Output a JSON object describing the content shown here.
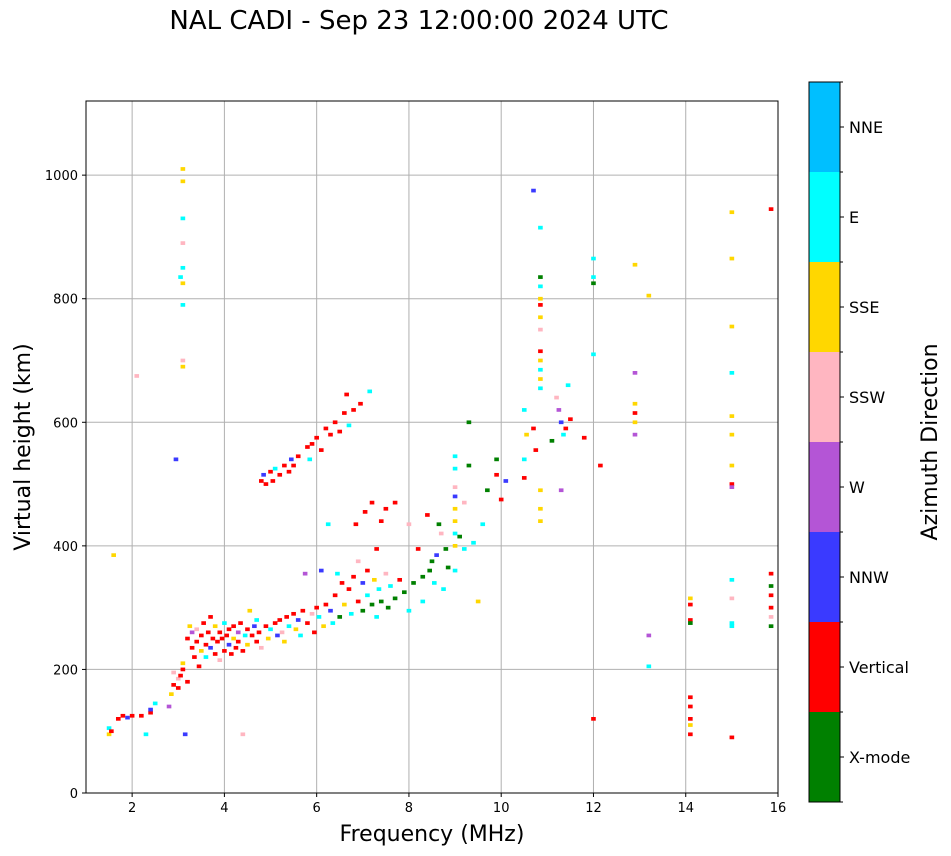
{
  "chart_data": {
    "type": "scatter",
    "title": "NAL CADI - Sep 23 12:00:00 2024 UTC",
    "xlabel": "Frequency (MHz)",
    "ylabel": "Virtual height (km)",
    "xlim": [
      1,
      16
    ],
    "ylim": [
      0,
      1120
    ],
    "xticks": [
      2,
      4,
      6,
      8,
      10,
      12,
      14,
      16
    ],
    "yticks": [
      0,
      200,
      400,
      600,
      800,
      1000
    ],
    "grid": true,
    "colorbar": {
      "label": "Azimuth Direction",
      "categories": [
        "X-mode",
        "Vertical",
        "NNW",
        "W",
        "SSW",
        "SSE",
        "E",
        "NNE"
      ],
      "colors": [
        "#008000",
        "#ff0000",
        "#3a3aff",
        "#b455d6",
        "#ffb6c1",
        "#ffd700",
        "#00ffff",
        "#00bfff"
      ]
    },
    "points": [
      [
        1.5,
        105,
        "E"
      ],
      [
        1.5,
        95,
        "SSE"
      ],
      [
        1.55,
        100,
        "Vertical"
      ],
      [
        1.6,
        385,
        "SSE"
      ],
      [
        1.7,
        120,
        "Vertical"
      ],
      [
        1.8,
        125,
        "Vertical"
      ],
      [
        1.9,
        122,
        "NNW"
      ],
      [
        2.0,
        125,
        "Vertical"
      ],
      [
        2.1,
        675,
        "SSW"
      ],
      [
        2.2,
        125,
        "Vertical"
      ],
      [
        2.3,
        95,
        "E"
      ],
      [
        2.4,
        130,
        "Vertical"
      ],
      [
        2.4,
        135,
        "NNW"
      ],
      [
        2.5,
        145,
        "E"
      ],
      [
        2.8,
        140,
        "W"
      ],
      [
        2.85,
        160,
        "SSE"
      ],
      [
        2.9,
        175,
        "Vertical"
      ],
      [
        2.9,
        195,
        "SSW"
      ],
      [
        2.95,
        540,
        "NNW"
      ],
      [
        3.0,
        170,
        "Vertical"
      ],
      [
        3.0,
        185,
        "SSW"
      ],
      [
        3.05,
        190,
        "Vertical"
      ],
      [
        3.1,
        210,
        "SSE"
      ],
      [
        3.1,
        200,
        "Vertical"
      ],
      [
        3.15,
        95,
        "NNW"
      ],
      [
        3.1,
        1010,
        "SSE"
      ],
      [
        3.1,
        990,
        "SSE"
      ],
      [
        3.1,
        930,
        "E"
      ],
      [
        3.1,
        890,
        "SSW"
      ],
      [
        3.1,
        850,
        "E"
      ],
      [
        3.1,
        825,
        "SSE"
      ],
      [
        3.1,
        790,
        "E"
      ],
      [
        3.1,
        700,
        "SSW"
      ],
      [
        3.1,
        690,
        "SSE"
      ],
      [
        3.05,
        835,
        "E"
      ],
      [
        3.2,
        180,
        "Vertical"
      ],
      [
        3.2,
        250,
        "Vertical"
      ],
      [
        3.25,
        270,
        "SSE"
      ],
      [
        3.3,
        235,
        "Vertical"
      ],
      [
        3.3,
        260,
        "W"
      ],
      [
        3.35,
        220,
        "Vertical"
      ],
      [
        3.4,
        245,
        "Vertical"
      ],
      [
        3.4,
        265,
        "SSW"
      ],
      [
        3.45,
        205,
        "Vertical"
      ],
      [
        3.5,
        255,
        "Vertical"
      ],
      [
        3.5,
        230,
        "SSE"
      ],
      [
        3.55,
        275,
        "Vertical"
      ],
      [
        3.6,
        240,
        "Vertical"
      ],
      [
        3.6,
        220,
        "E"
      ],
      [
        3.65,
        260,
        "Vertical"
      ],
      [
        3.7,
        285,
        "Vertical"
      ],
      [
        3.7,
        235,
        "NNW"
      ],
      [
        3.75,
        250,
        "Vertical"
      ],
      [
        3.8,
        225,
        "Vertical"
      ],
      [
        3.8,
        270,
        "SSE"
      ],
      [
        3.85,
        245,
        "Vertical"
      ],
      [
        3.9,
        260,
        "Vertical"
      ],
      [
        3.9,
        215,
        "SSW"
      ],
      [
        3.95,
        250,
        "Vertical"
      ],
      [
        4.0,
        230,
        "Vertical"
      ],
      [
        4.0,
        275,
        "E"
      ],
      [
        4.05,
        255,
        "Vertical"
      ],
      [
        4.1,
        240,
        "NNW"
      ],
      [
        4.1,
        265,
        "Vertical"
      ],
      [
        4.15,
        225,
        "Vertical"
      ],
      [
        4.2,
        250,
        "SSE"
      ],
      [
        4.2,
        270,
        "Vertical"
      ],
      [
        4.25,
        235,
        "Vertical"
      ],
      [
        4.3,
        260,
        "W"
      ],
      [
        4.3,
        245,
        "Vertical"
      ],
      [
        4.35,
        275,
        "Vertical"
      ],
      [
        4.4,
        230,
        "Vertical"
      ],
      [
        4.4,
        95,
        "SSW"
      ],
      [
        4.45,
        255,
        "E"
      ],
      [
        4.5,
        265,
        "Vertical"
      ],
      [
        4.5,
        240,
        "SSE"
      ],
      [
        4.55,
        295,
        "SSE"
      ],
      [
        4.6,
        255,
        "Vertical"
      ],
      [
        4.65,
        270,
        "NNW"
      ],
      [
        4.7,
        245,
        "Vertical"
      ],
      [
        4.7,
        280,
        "E"
      ],
      [
        4.75,
        260,
        "Vertical"
      ],
      [
        4.8,
        235,
        "SSW"
      ],
      [
        4.8,
        505,
        "Vertical"
      ],
      [
        4.85,
        515,
        "NNW"
      ],
      [
        4.9,
        500,
        "Vertical"
      ],
      [
        4.9,
        270,
        "Vertical"
      ],
      [
        4.95,
        250,
        "SSE"
      ],
      [
        5.0,
        520,
        "Vertical"
      ],
      [
        5.0,
        265,
        "E"
      ],
      [
        5.05,
        505,
        "Vertical"
      ],
      [
        5.1,
        275,
        "Vertical"
      ],
      [
        5.1,
        525,
        "E"
      ],
      [
        5.15,
        255,
        "NNW"
      ],
      [
        5.2,
        515,
        "Vertical"
      ],
      [
        5.2,
        280,
        "Vertical"
      ],
      [
        5.25,
        260,
        "SSW"
      ],
      [
        5.3,
        530,
        "Vertical"
      ],
      [
        5.3,
        245,
        "SSE"
      ],
      [
        5.35,
        285,
        "Vertical"
      ],
      [
        5.4,
        520,
        "Vertical"
      ],
      [
        5.4,
        270,
        "E"
      ],
      [
        5.45,
        540,
        "NNW"
      ],
      [
        5.5,
        290,
        "Vertical"
      ],
      [
        5.5,
        530,
        "Vertical"
      ],
      [
        5.55,
        265,
        "SSE"
      ],
      [
        5.6,
        545,
        "Vertical"
      ],
      [
        5.6,
        280,
        "NNW"
      ],
      [
        5.65,
        255,
        "E"
      ],
      [
        5.7,
        295,
        "Vertical"
      ],
      [
        5.75,
        355,
        "W"
      ],
      [
        5.8,
        560,
        "Vertical"
      ],
      [
        5.8,
        275,
        "Vertical"
      ],
      [
        5.85,
        540,
        "E"
      ],
      [
        5.9,
        290,
        "SSW"
      ],
      [
        5.9,
        565,
        "Vertical"
      ],
      [
        5.95,
        260,
        "Vertical"
      ],
      [
        6.0,
        575,
        "Vertical"
      ],
      [
        6.0,
        300,
        "Vertical"
      ],
      [
        6.05,
        285,
        "E"
      ],
      [
        6.1,
        360,
        "NNW"
      ],
      [
        6.1,
        555,
        "Vertical"
      ],
      [
        6.15,
        270,
        "SSE"
      ],
      [
        6.2,
        590,
        "Vertical"
      ],
      [
        6.2,
        305,
        "Vertical"
      ],
      [
        6.25,
        435,
        "E"
      ],
      [
        6.3,
        580,
        "Vertical"
      ],
      [
        6.3,
        295,
        "NNW"
      ],
      [
        6.35,
        275,
        "E"
      ],
      [
        6.4,
        600,
        "Vertical"
      ],
      [
        6.4,
        320,
        "Vertical"
      ],
      [
        6.45,
        355,
        "E"
      ],
      [
        6.5,
        585,
        "Vertical"
      ],
      [
        6.5,
        285,
        "X-mode"
      ],
      [
        6.55,
        340,
        "Vertical"
      ],
      [
        6.6,
        615,
        "Vertical"
      ],
      [
        6.6,
        305,
        "SSE"
      ],
      [
        6.65,
        645,
        "Vertical"
      ],
      [
        6.7,
        595,
        "E"
      ],
      [
        6.7,
        330,
        "Vertical"
      ],
      [
        6.75,
        290,
        "E"
      ],
      [
        6.8,
        620,
        "Vertical"
      ],
      [
        6.8,
        350,
        "Vertical"
      ],
      [
        6.85,
        435,
        "Vertical"
      ],
      [
        6.9,
        310,
        "Vertical"
      ],
      [
        6.9,
        375,
        "SSW"
      ],
      [
        6.95,
        630,
        "Vertical"
      ],
      [
        7.0,
        340,
        "NNW"
      ],
      [
        7.0,
        295,
        "X-mode"
      ],
      [
        7.05,
        455,
        "Vertical"
      ],
      [
        7.1,
        320,
        "E"
      ],
      [
        7.1,
        360,
        "Vertical"
      ],
      [
        7.15,
        650,
        "E"
      ],
      [
        7.2,
        305,
        "X-mode"
      ],
      [
        7.2,
        470,
        "Vertical"
      ],
      [
        7.25,
        345,
        "SSE"
      ],
      [
        7.3,
        395,
        "Vertical"
      ],
      [
        7.3,
        285,
        "E"
      ],
      [
        7.35,
        330,
        "E"
      ],
      [
        7.4,
        440,
        "Vertical"
      ],
      [
        7.4,
        310,
        "X-mode"
      ],
      [
        7.5,
        355,
        "SSW"
      ],
      [
        7.5,
        460,
        "Vertical"
      ],
      [
        7.55,
        300,
        "X-mode"
      ],
      [
        7.6,
        335,
        "E"
      ],
      [
        7.7,
        315,
        "X-mode"
      ],
      [
        7.7,
        470,
        "Vertical"
      ],
      [
        7.8,
        345,
        "Vertical"
      ],
      [
        7.9,
        325,
        "X-mode"
      ],
      [
        8.0,
        435,
        "SSW"
      ],
      [
        8.0,
        295,
        "E"
      ],
      [
        8.1,
        340,
        "X-mode"
      ],
      [
        8.2,
        395,
        "Vertical"
      ],
      [
        8.3,
        350,
        "X-mode"
      ],
      [
        8.3,
        310,
        "E"
      ],
      [
        8.4,
        450,
        "Vertical"
      ],
      [
        8.45,
        360,
        "X-mode"
      ],
      [
        8.5,
        375,
        "X-mode"
      ],
      [
        8.55,
        340,
        "E"
      ],
      [
        8.6,
        385,
        "NNW"
      ],
      [
        8.65,
        435,
        "X-mode"
      ],
      [
        8.7,
        420,
        "SSW"
      ],
      [
        8.75,
        330,
        "E"
      ],
      [
        8.8,
        395,
        "X-mode"
      ],
      [
        8.85,
        365,
        "X-mode"
      ],
      [
        9.0,
        545,
        "E"
      ],
      [
        9.0,
        525,
        "E"
      ],
      [
        9.0,
        495,
        "SSW"
      ],
      [
        9.0,
        480,
        "NNW"
      ],
      [
        9.0,
        460,
        "SSE"
      ],
      [
        9.0,
        440,
        "SSE"
      ],
      [
        9.0,
        420,
        "E"
      ],
      [
        9.0,
        400,
        "SSE"
      ],
      [
        9.0,
        360,
        "E"
      ],
      [
        9.1,
        415,
        "X-mode"
      ],
      [
        9.2,
        470,
        "SSW"
      ],
      [
        9.2,
        395,
        "E"
      ],
      [
        9.3,
        600,
        "X-mode"
      ],
      [
        9.3,
        530,
        "X-mode"
      ],
      [
        9.4,
        405,
        "E"
      ],
      [
        9.5,
        310,
        "SSE"
      ],
      [
        9.6,
        435,
        "E"
      ],
      [
        9.7,
        490,
        "X-mode"
      ],
      [
        9.9,
        540,
        "X-mode"
      ],
      [
        9.9,
        515,
        "Vertical"
      ],
      [
        10.0,
        475,
        "Vertical"
      ],
      [
        10.1,
        505,
        "NNW"
      ],
      [
        10.5,
        620,
        "E"
      ],
      [
        10.5,
        540,
        "E"
      ],
      [
        10.5,
        510,
        "Vertical"
      ],
      [
        10.55,
        580,
        "SSE"
      ],
      [
        10.7,
        975,
        "NNW"
      ],
      [
        10.7,
        590,
        "Vertical"
      ],
      [
        10.75,
        555,
        "Vertical"
      ],
      [
        10.85,
        915,
        "E"
      ],
      [
        10.85,
        835,
        "X-mode"
      ],
      [
        10.85,
        820,
        "E"
      ],
      [
        10.85,
        800,
        "SSE"
      ],
      [
        10.85,
        790,
        "Vertical"
      ],
      [
        10.85,
        770,
        "SSE"
      ],
      [
        10.85,
        750,
        "SSW"
      ],
      [
        10.85,
        715,
        "Vertical"
      ],
      [
        10.85,
        700,
        "SSE"
      ],
      [
        10.85,
        685,
        "E"
      ],
      [
        10.85,
        670,
        "SSE"
      ],
      [
        10.85,
        655,
        "E"
      ],
      [
        10.85,
        490,
        "SSE"
      ],
      [
        10.85,
        460,
        "SSE"
      ],
      [
        10.85,
        440,
        "SSE"
      ],
      [
        11.1,
        570,
        "X-mode"
      ],
      [
        11.2,
        640,
        "SSW"
      ],
      [
        11.25,
        620,
        "W"
      ],
      [
        11.3,
        600,
        "NNW"
      ],
      [
        11.3,
        490,
        "W"
      ],
      [
        11.35,
        580,
        "E"
      ],
      [
        11.4,
        590,
        "Vertical"
      ],
      [
        11.45,
        660,
        "E"
      ],
      [
        11.5,
        605,
        "Vertical"
      ],
      [
        11.8,
        575,
        "Vertical"
      ],
      [
        12.0,
        865,
        "E"
      ],
      [
        12.0,
        835,
        "E"
      ],
      [
        12.0,
        825,
        "X-mode"
      ],
      [
        12.0,
        710,
        "E"
      ],
      [
        12.0,
        120,
        "Vertical"
      ],
      [
        12.15,
        530,
        "Vertical"
      ],
      [
        12.9,
        855,
        "SSE"
      ],
      [
        12.9,
        680,
        "W"
      ],
      [
        12.9,
        630,
        "SSE"
      ],
      [
        12.9,
        615,
        "Vertical"
      ],
      [
        12.9,
        600,
        "SSE"
      ],
      [
        12.9,
        580,
        "W"
      ],
      [
        13.2,
        805,
        "SSE"
      ],
      [
        13.2,
        255,
        "W"
      ],
      [
        13.2,
        205,
        "E"
      ],
      [
        14.1,
        315,
        "SSE"
      ],
      [
        14.1,
        305,
        "Vertical"
      ],
      [
        14.1,
        280,
        "Vertical"
      ],
      [
        14.1,
        275,
        "X-mode"
      ],
      [
        14.1,
        155,
        "Vertical"
      ],
      [
        14.1,
        140,
        "Vertical"
      ],
      [
        14.1,
        120,
        "Vertical"
      ],
      [
        14.1,
        110,
        "SSE"
      ],
      [
        14.1,
        95,
        "Vertical"
      ],
      [
        15.0,
        940,
        "SSE"
      ],
      [
        15.0,
        865,
        "SSE"
      ],
      [
        15.0,
        755,
        "SSE"
      ],
      [
        15.0,
        680,
        "E"
      ],
      [
        15.0,
        610,
        "SSE"
      ],
      [
        15.0,
        580,
        "SSE"
      ],
      [
        15.0,
        530,
        "SSE"
      ],
      [
        15.0,
        500,
        "Vertical"
      ],
      [
        15.0,
        495,
        "W"
      ],
      [
        15.0,
        345,
        "E"
      ],
      [
        15.0,
        315,
        "SSW"
      ],
      [
        15.0,
        275,
        "E"
      ],
      [
        15.0,
        270,
        "E"
      ],
      [
        15.0,
        90,
        "Vertical"
      ],
      [
        15.85,
        945,
        "Vertical"
      ],
      [
        15.85,
        355,
        "Vertical"
      ],
      [
        15.85,
        335,
        "X-mode"
      ],
      [
        15.85,
        320,
        "Vertical"
      ],
      [
        15.85,
        300,
        "Vertical"
      ],
      [
        15.85,
        285,
        "SSW"
      ],
      [
        15.85,
        270,
        "X-mode"
      ]
    ]
  }
}
